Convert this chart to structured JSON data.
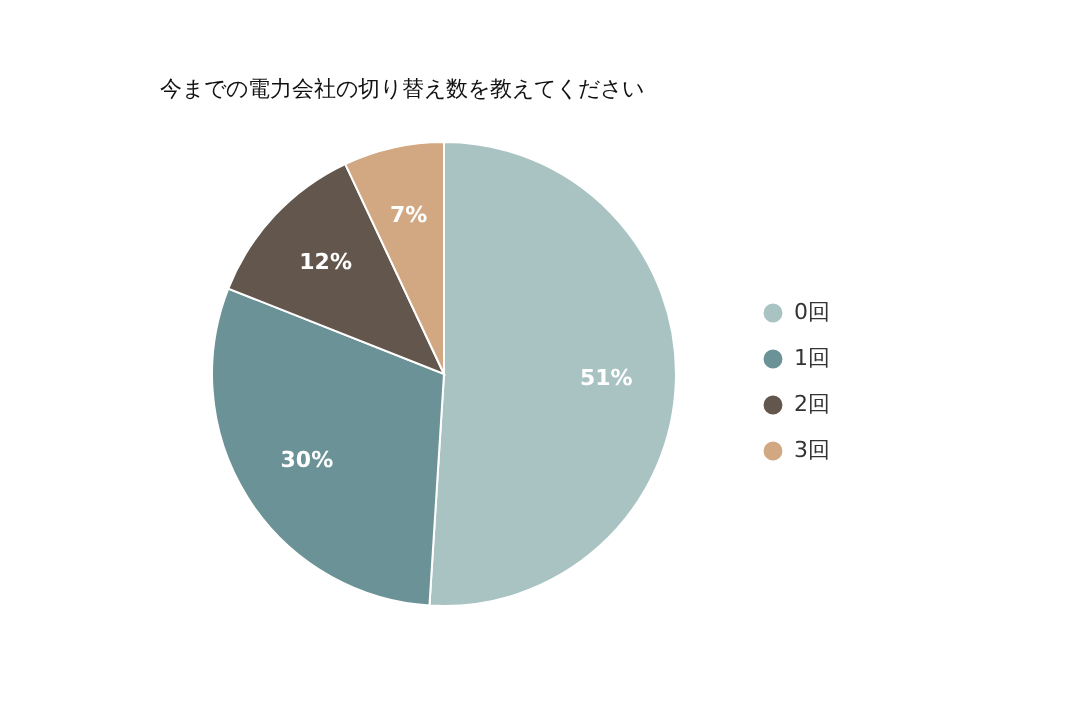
{
  "chart_data": {
    "type": "pie",
    "title": "今までの電力会社の切り替え数を教えてください",
    "categories": [
      "0回",
      "1回",
      "2回",
      "3回"
    ],
    "values": [
      51,
      30,
      12,
      7
    ],
    "value_labels": [
      "51%",
      "30%",
      "12%",
      "7%"
    ],
    "colors": [
      "#a9c3c3",
      "#6b9296",
      "#63564c",
      "#d2a882"
    ],
    "legend": "right"
  }
}
